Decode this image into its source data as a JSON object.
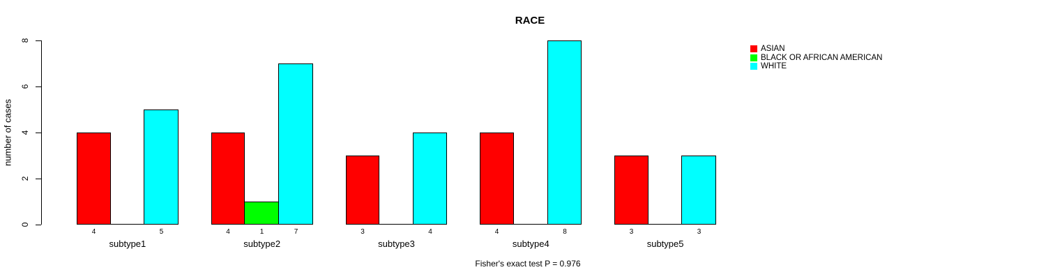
{
  "chart_data": {
    "type": "bar",
    "title": "RACE",
    "ylabel": "number of cases",
    "xlabel": "",
    "categories": [
      "subtype1",
      "subtype2",
      "subtype3",
      "subtype4",
      "subtype5"
    ],
    "series": [
      {
        "name": "ASIAN",
        "color": "#FF0000",
        "values": [
          4,
          4,
          3,
          4,
          3
        ],
        "value_labels": [
          "4",
          "4",
          "3",
          "4",
          "3"
        ]
      },
      {
        "name": "BLACK OR AFRICAN AMERICAN",
        "color": "#00FF00",
        "values": [
          0,
          1,
          0,
          0,
          0
        ],
        "value_labels": [
          "",
          "1",
          "",
          "",
          ""
        ]
      },
      {
        "name": "WHITE",
        "color": "#00FFFF",
        "values": [
          5,
          7,
          4,
          8,
          3
        ],
        "value_labels": [
          "5",
          "7",
          "4",
          "8",
          "3"
        ]
      }
    ],
    "ylim": [
      0,
      8
    ],
    "yticks": [
      "0",
      "2",
      "4",
      "6",
      "8"
    ],
    "grid": false,
    "legend_position": "right-outside",
    "footnote": "Fisher's exact test P = 0.976"
  }
}
